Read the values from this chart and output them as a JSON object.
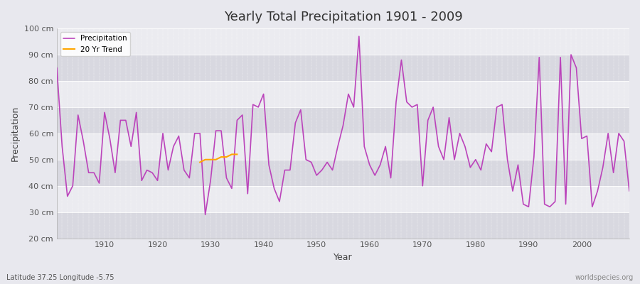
{
  "title": "Yearly Total Precipitation 1901 - 2009",
  "xlabel": "Year",
  "ylabel": "Precipitation",
  "subtitle": "Latitude 37.25 Longitude -5.75",
  "watermark": "worldspecies.org",
  "ylim": [
    20,
    100
  ],
  "xlim": [
    1901,
    2009
  ],
  "yticks": [
    20,
    30,
    40,
    50,
    60,
    70,
    80,
    90,
    100
  ],
  "ytick_labels": [
    "20 cm",
    "30 cm",
    "40 cm",
    "50 cm",
    "60 cm",
    "70 cm",
    "80 cm",
    "90 cm",
    "100 cm"
  ],
  "line_color": "#bb44bb",
  "trend_color": "#ffa500",
  "bg_color": "#e8e8ee",
  "band_light": "#ebebf0",
  "band_dark": "#d8d8e0",
  "grid_color": "#ccccdd",
  "years": [
    1901,
    1902,
    1903,
    1904,
    1905,
    1906,
    1907,
    1908,
    1909,
    1910,
    1911,
    1912,
    1913,
    1914,
    1915,
    1916,
    1917,
    1918,
    1919,
    1920,
    1921,
    1922,
    1923,
    1924,
    1925,
    1926,
    1927,
    1928,
    1929,
    1930,
    1931,
    1932,
    1933,
    1934,
    1935,
    1936,
    1937,
    1938,
    1939,
    1940,
    1941,
    1942,
    1943,
    1944,
    1945,
    1946,
    1947,
    1948,
    1949,
    1950,
    1951,
    1952,
    1953,
    1954,
    1955,
    1956,
    1957,
    1958,
    1959,
    1960,
    1961,
    1962,
    1963,
    1964,
    1965,
    1966,
    1967,
    1968,
    1969,
    1970,
    1971,
    1972,
    1973,
    1974,
    1975,
    1976,
    1977,
    1978,
    1979,
    1980,
    1981,
    1982,
    1983,
    1984,
    1985,
    1986,
    1987,
    1988,
    1989,
    1990,
    1991,
    1992,
    1993,
    1994,
    1995,
    1996,
    1997,
    1998,
    1999,
    2000,
    2001,
    2002,
    2003,
    2004,
    2005,
    2006,
    2007,
    2008,
    2009
  ],
  "precip": [
    85,
    55,
    36,
    40,
    67,
    57,
    45,
    45,
    41,
    68,
    58,
    45,
    65,
    65,
    55,
    68,
    42,
    46,
    45,
    42,
    60,
    46,
    55,
    59,
    46,
    43,
    60,
    60,
    29,
    42,
    61,
    61,
    43,
    39,
    65,
    67,
    37,
    71,
    70,
    75,
    48,
    39,
    34,
    46,
    46,
    64,
    69,
    50,
    49,
    44,
    46,
    49,
    46,
    55,
    63,
    75,
    70,
    97,
    55,
    48,
    44,
    48,
    55,
    43,
    72,
    88,
    72,
    70,
    71,
    40,
    65,
    70,
    55,
    50,
    66,
    50,
    60,
    55,
    47,
    50,
    46,
    56,
    53,
    70,
    71,
    50,
    38,
    48,
    33,
    32,
    51,
    89,
    33,
    32,
    34,
    89,
    33,
    90,
    85,
    58,
    59,
    32,
    38,
    47,
    60,
    45,
    60,
    57,
    38
  ],
  "trend_years": [
    1928,
    1929,
    1930,
    1931,
    1932,
    1933,
    1934,
    1935
  ],
  "trend_vals": [
    49,
    50,
    50,
    50,
    51,
    51,
    52,
    52
  ]
}
